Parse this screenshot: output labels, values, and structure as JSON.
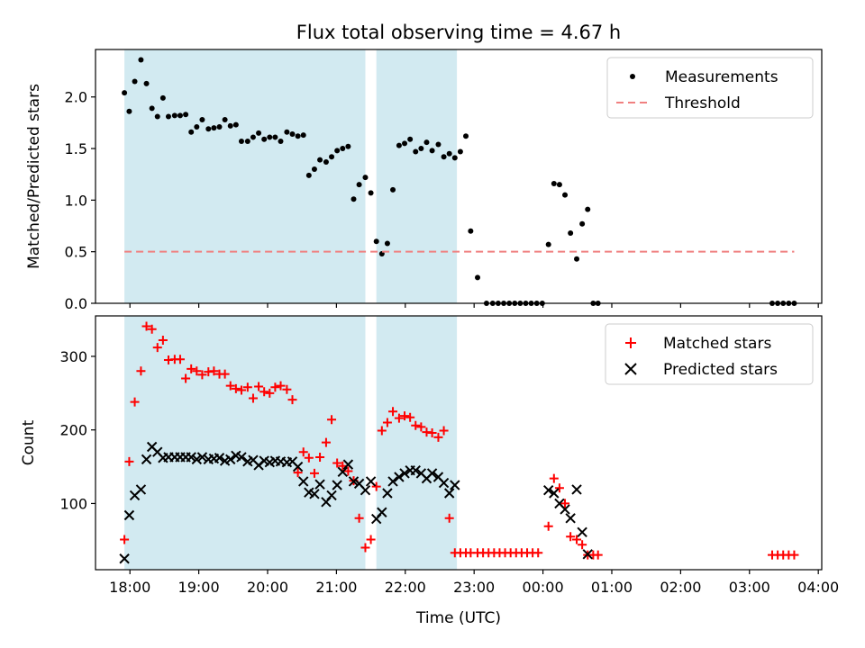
{
  "chart_data": [
    {
      "type": "scatter",
      "title": "Flux total observing time = 4.67 h",
      "xlabel": "",
      "ylabel": "Matched/Predicted stars",
      "xlim_hours": [
        17.5,
        28.05
      ],
      "ylim": [
        0,
        2.46
      ],
      "yticks": [
        0.0,
        0.5,
        1.0,
        1.5,
        2.0
      ],
      "ytick_labels": [
        "0.0",
        "0.5",
        "1.0",
        "1.5",
        "2.0"
      ],
      "shaded_intervals_hours": [
        [
          17.92,
          21.42
        ],
        [
          21.58,
          22.75
        ]
      ],
      "shade_color": "#add8e6",
      "legend": {
        "position": "top-right",
        "entries": [
          "Measurements",
          "Threshold"
        ]
      },
      "series": [
        {
          "name": "Measurements",
          "marker": "dot",
          "color": "#000000",
          "points": [
            [
              17.92,
              2.04
            ],
            [
              17.99,
              1.86
            ],
            [
              18.07,
              2.15
            ],
            [
              18.16,
              2.36
            ],
            [
              18.24,
              2.13
            ],
            [
              18.32,
              1.89
            ],
            [
              18.4,
              1.81
            ],
            [
              18.48,
              1.99
            ],
            [
              18.56,
              1.81
            ],
            [
              18.65,
              1.82
            ],
            [
              18.73,
              1.82
            ],
            [
              18.81,
              1.83
            ],
            [
              18.89,
              1.66
            ],
            [
              18.97,
              1.71
            ],
            [
              19.05,
              1.78
            ],
            [
              19.14,
              1.69
            ],
            [
              19.22,
              1.7
            ],
            [
              19.3,
              1.71
            ],
            [
              19.38,
              1.78
            ],
            [
              19.46,
              1.72
            ],
            [
              19.54,
              1.73
            ],
            [
              19.62,
              1.57
            ],
            [
              19.71,
              1.57
            ],
            [
              19.79,
              1.61
            ],
            [
              19.87,
              1.65
            ],
            [
              19.95,
              1.59
            ],
            [
              20.03,
              1.61
            ],
            [
              20.11,
              1.61
            ],
            [
              20.19,
              1.57
            ],
            [
              20.28,
              1.66
            ],
            [
              20.36,
              1.64
            ],
            [
              20.44,
              1.62
            ],
            [
              20.52,
              1.63
            ],
            [
              20.6,
              1.24
            ],
            [
              20.68,
              1.3
            ],
            [
              20.76,
              1.39
            ],
            [
              20.85,
              1.37
            ],
            [
              20.93,
              1.42
            ],
            [
              21.01,
              1.48
            ],
            [
              21.09,
              1.5
            ],
            [
              21.17,
              1.52
            ],
            [
              21.25,
              1.01
            ],
            [
              21.33,
              1.15
            ],
            [
              21.42,
              1.22
            ],
            [
              21.5,
              1.07
            ],
            [
              21.58,
              0.6
            ],
            [
              21.66,
              0.48
            ],
            [
              21.74,
              0.58
            ],
            [
              21.82,
              1.1
            ],
            [
              21.91,
              1.53
            ],
            [
              21.99,
              1.55
            ],
            [
              22.07,
              1.59
            ],
            [
              22.15,
              1.47
            ],
            [
              22.23,
              1.5
            ],
            [
              22.31,
              1.56
            ],
            [
              22.39,
              1.48
            ],
            [
              22.48,
              1.54
            ],
            [
              22.56,
              1.42
            ],
            [
              22.64,
              1.45
            ],
            [
              22.72,
              1.41
            ],
            [
              22.8,
              1.47
            ],
            [
              22.88,
              1.62
            ],
            [
              22.95,
              0.7
            ],
            [
              23.05,
              0.25
            ],
            [
              23.18,
              0
            ],
            [
              23.27,
              0
            ],
            [
              23.35,
              0
            ],
            [
              23.43,
              0
            ],
            [
              23.51,
              0
            ],
            [
              23.59,
              0
            ],
            [
              23.67,
              0
            ],
            [
              23.75,
              0
            ],
            [
              23.83,
              0
            ],
            [
              23.91,
              0
            ],
            [
              23.99,
              0
            ],
            [
              24.08,
              0.57
            ],
            [
              24.16,
              1.16
            ],
            [
              24.24,
              1.15
            ],
            [
              24.32,
              1.05
            ],
            [
              24.4,
              0.68
            ],
            [
              24.49,
              0.43
            ],
            [
              24.57,
              0.77
            ],
            [
              24.65,
              0.91
            ],
            [
              24.73,
              0
            ],
            [
              24.8,
              0
            ],
            [
              27.33,
              0
            ],
            [
              27.41,
              0
            ],
            [
              27.49,
              0
            ],
            [
              27.57,
              0
            ],
            [
              27.65,
              0
            ]
          ]
        },
        {
          "name": "Threshold",
          "style": "dashed",
          "color": "#f08080",
          "x_range_hours": [
            17.92,
            27.65
          ],
          "y": 0.5
        }
      ]
    },
    {
      "type": "scatter",
      "title": "",
      "xlabel": "Time (UTC)",
      "ylabel": "Count",
      "xlim_hours": [
        17.5,
        28.05
      ],
      "ylim": [
        10,
        355
      ],
      "yticks": [
        100,
        200,
        300
      ],
      "ytick_labels": [
        "100",
        "200",
        "300"
      ],
      "xticks_hours": [
        18,
        19,
        20,
        21,
        22,
        23,
        24,
        25,
        26,
        27,
        28
      ],
      "xtick_labels": [
        "18:00",
        "19:00",
        "20:00",
        "21:00",
        "22:00",
        "23:00",
        "00:00",
        "01:00",
        "02:00",
        "03:00",
        "04:00"
      ],
      "shaded_intervals_hours": [
        [
          17.92,
          21.42
        ],
        [
          21.58,
          22.75
        ]
      ],
      "shade_color": "#add8e6",
      "legend": {
        "position": "top-right",
        "entries": [
          "Matched stars",
          "Predicted stars"
        ]
      },
      "series": [
        {
          "name": "Matched stars",
          "marker": "plus",
          "color": "#ff0000",
          "points": [
            [
              17.92,
              51
            ],
            [
              17.99,
              157
            ],
            [
              18.07,
              238
            ],
            [
              18.16,
              280
            ],
            [
              18.24,
              341
            ],
            [
              18.32,
              337
            ],
            [
              18.4,
              312
            ],
            [
              18.48,
              322
            ],
            [
              18.56,
              295
            ],
            [
              18.65,
              296
            ],
            [
              18.73,
              296
            ],
            [
              18.81,
              270
            ],
            [
              18.89,
              283
            ],
            [
              18.97,
              280
            ],
            [
              19.05,
              275
            ],
            [
              19.14,
              279
            ],
            [
              19.22,
              280
            ],
            [
              19.3,
              276
            ],
            [
              19.38,
              276
            ],
            [
              19.46,
              260
            ],
            [
              19.54,
              256
            ],
            [
              19.62,
              254
            ],
            [
              19.71,
              258
            ],
            [
              19.79,
              243
            ],
            [
              19.87,
              259
            ],
            [
              19.95,
              252
            ],
            [
              20.03,
              250
            ],
            [
              20.11,
              258
            ],
            [
              20.19,
              260
            ],
            [
              20.28,
              255
            ],
            [
              20.36,
              241
            ],
            [
              20.44,
              142
            ],
            [
              20.52,
              170
            ],
            [
              20.6,
              162
            ],
            [
              20.68,
              141
            ],
            [
              20.76,
              163
            ],
            [
              20.85,
              183
            ],
            [
              20.93,
              214
            ],
            [
              21.01,
              155
            ],
            [
              21.09,
              151
            ],
            [
              21.17,
              144
            ],
            [
              21.25,
              131
            ],
            [
              21.33,
              80
            ],
            [
              21.42,
              40
            ],
            [
              21.5,
              51
            ],
            [
              21.58,
              123
            ],
            [
              21.66,
              199
            ],
            [
              21.74,
              210
            ],
            [
              21.82,
              225
            ],
            [
              21.91,
              216
            ],
            [
              21.99,
              219
            ],
            [
              22.07,
              217
            ],
            [
              22.15,
              206
            ],
            [
              22.23,
              204
            ],
            [
              22.31,
              197
            ],
            [
              22.39,
              196
            ],
            [
              22.48,
              190
            ],
            [
              22.56,
              199
            ],
            [
              22.64,
              80
            ],
            [
              22.72,
              33
            ],
            [
              22.8,
              33
            ],
            [
              22.88,
              33
            ],
            [
              22.95,
              33
            ],
            [
              23.05,
              33
            ],
            [
              23.13,
              33
            ],
            [
              23.21,
              33
            ],
            [
              23.29,
              33
            ],
            [
              23.37,
              33
            ],
            [
              23.45,
              33
            ],
            [
              23.53,
              33
            ],
            [
              23.61,
              33
            ],
            [
              23.69,
              33
            ],
            [
              23.77,
              33
            ],
            [
              23.85,
              33
            ],
            [
              23.93,
              33
            ],
            [
              24.08,
              69
            ],
            [
              24.16,
              134
            ],
            [
              24.24,
              121
            ],
            [
              24.32,
              100
            ],
            [
              24.4,
              55
            ],
            [
              24.49,
              51
            ],
            [
              24.57,
              44
            ],
            [
              24.65,
              30
            ],
            [
              24.73,
              30
            ],
            [
              24.8,
              30
            ],
            [
              27.33,
              30
            ],
            [
              27.41,
              30
            ],
            [
              27.49,
              30
            ],
            [
              27.57,
              30
            ],
            [
              27.65,
              30
            ]
          ]
        },
        {
          "name": "Predicted stars",
          "marker": "x",
          "color": "#000000",
          "points": [
            [
              17.92,
              25
            ],
            [
              17.99,
              84
            ],
            [
              18.07,
              111
            ],
            [
              18.16,
              119
            ],
            [
              18.24,
              160
            ],
            [
              18.32,
              177
            ],
            [
              18.4,
              170
            ],
            [
              18.48,
              162
            ],
            [
              18.56,
              163
            ],
            [
              18.65,
              163
            ],
            [
              18.73,
              163
            ],
            [
              18.81,
              163
            ],
            [
              18.89,
              163
            ],
            [
              18.97,
              160
            ],
            [
              19.05,
              163
            ],
            [
              19.14,
              160
            ],
            [
              19.22,
              161
            ],
            [
              19.3,
              162
            ],
            [
              19.38,
              158
            ],
            [
              19.46,
              160
            ],
            [
              19.54,
              165
            ],
            [
              19.62,
              163
            ],
            [
              19.71,
              157
            ],
            [
              19.79,
              159
            ],
            [
              19.87,
              152
            ],
            [
              19.95,
              158
            ],
            [
              20.03,
              156
            ],
            [
              20.11,
              158
            ],
            [
              20.19,
              157
            ],
            [
              20.28,
              156
            ],
            [
              20.36,
              157
            ],
            [
              20.44,
              150
            ],
            [
              20.52,
              130
            ],
            [
              20.6,
              115
            ],
            [
              20.68,
              113
            ],
            [
              20.76,
              126
            ],
            [
              20.85,
              102
            ],
            [
              20.93,
              111
            ],
            [
              21.01,
              125
            ],
            [
              21.09,
              143
            ],
            [
              21.17,
              153
            ],
            [
              21.25,
              130
            ],
            [
              21.33,
              127
            ],
            [
              21.42,
              118
            ],
            [
              21.5,
              130
            ],
            [
              21.58,
              79
            ],
            [
              21.66,
              88
            ],
            [
              21.74,
              114
            ],
            [
              21.82,
              130
            ],
            [
              21.91,
              136
            ],
            [
              21.99,
              141
            ],
            [
              22.07,
              145
            ],
            [
              22.15,
              145
            ],
            [
              22.23,
              141
            ],
            [
              22.31,
              134
            ],
            [
              22.39,
              141
            ],
            [
              22.48,
              136
            ],
            [
              22.56,
              128
            ],
            [
              22.64,
              114
            ],
            [
              22.72,
              125
            ],
            [
              24.08,
              118
            ],
            [
              24.16,
              114
            ],
            [
              24.24,
              100
            ],
            [
              24.32,
              92
            ],
            [
              24.4,
              80
            ],
            [
              24.49,
              119
            ],
            [
              24.57,
              61
            ],
            [
              24.65,
              31
            ]
          ]
        }
      ]
    }
  ]
}
